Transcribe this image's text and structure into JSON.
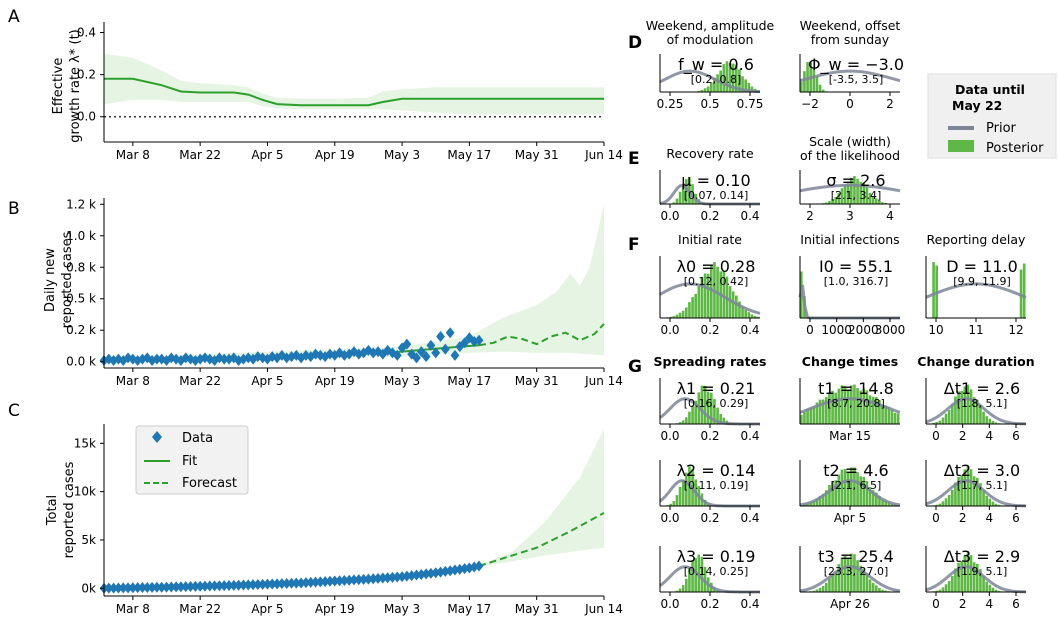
{
  "panel_letters": {
    "A": "A",
    "B": "B",
    "C": "C",
    "D": "D",
    "E": "E",
    "F": "F",
    "G": "G"
  },
  "x_tick_labels": [
    "Mar 8",
    "Mar 22",
    "Apr 5",
    "Apr 19",
    "May 3",
    "May 17",
    "May 31",
    "Jun 14"
  ],
  "colors": {
    "data": "#1f77b4",
    "fit": "#2ca02c",
    "band": "#e6f4e3",
    "posterior": "#5fb845",
    "prior": "#7c8699"
  },
  "chart_data": [
    {
      "type": "line",
      "id": "A",
      "ylabel": "Effective\ngrowth rate λ* (t)",
      "x_dates": [
        "Mar 2",
        "Mar 8",
        "Mar 14",
        "Mar 18",
        "Mar 22",
        "Mar 29",
        "Apr 1",
        "Apr 4",
        "Apr 7",
        "Apr 12",
        "Apr 19",
        "Apr 26",
        "Apr 29",
        "May 3",
        "May 10",
        "May 17",
        "May 31",
        "Jun 14"
      ],
      "series": [
        {
          "role": "fit",
          "values": [
            0.18,
            0.18,
            0.15,
            0.12,
            0.115,
            0.115,
            0.105,
            0.08,
            0.06,
            0.055,
            0.055,
            0.055,
            0.07,
            0.085,
            0.085,
            0.085,
            0.085,
            0.085
          ]
        },
        {
          "role": "band_upper",
          "values": [
            0.3,
            0.28,
            0.22,
            0.17,
            0.16,
            0.15,
            0.14,
            0.11,
            0.09,
            0.085,
            0.085,
            0.09,
            0.12,
            0.13,
            0.14,
            0.14,
            0.14,
            0.14
          ]
        },
        {
          "role": "band_lower",
          "values": [
            0.06,
            0.08,
            0.08,
            0.07,
            0.07,
            0.07,
            0.07,
            0.05,
            0.04,
            0.035,
            0.035,
            0.035,
            0.035,
            0.03,
            0.02,
            0.01,
            0.01,
            0.01
          ]
        }
      ],
      "yticks": [
        "0.0",
        "0.2",
        "0.4"
      ],
      "ylim": [
        -0.12,
        0.45
      ],
      "reference_line": 0
    },
    {
      "type": "line",
      "id": "B",
      "ylabel": "Daily new\nreported cases",
      "yticks": [
        "0.0 k",
        "0.2 k",
        "0.5 k",
        "0.8 k",
        "1.0 k",
        "1.2 k"
      ],
      "ylim": [
        -0.05,
        1.3
      ],
      "data_points": [
        [
          "Mar 2",
          0.01
        ],
        [
          "Mar 3",
          0.02
        ],
        [
          "Mar 4",
          0.01
        ],
        [
          "Mar 5",
          0.02
        ],
        [
          "Mar 6",
          0.01
        ],
        [
          "Mar 7",
          0.03
        ],
        [
          "Mar 8",
          0.02
        ],
        [
          "Mar 9",
          0.01
        ],
        [
          "Mar 10",
          0.02
        ],
        [
          "Mar 11",
          0.03
        ],
        [
          "Mar 12",
          0.01
        ],
        [
          "Mar 13",
          0.02
        ],
        [
          "Mar 14",
          0.02
        ],
        [
          "Mar 15",
          0.01
        ],
        [
          "Mar 16",
          0.03
        ],
        [
          "Mar 17",
          0.02
        ],
        [
          "Mar 18",
          0.01
        ],
        [
          "Mar 19",
          0.03
        ],
        [
          "Mar 20",
          0.02
        ],
        [
          "Mar 21",
          0.01
        ],
        [
          "Mar 22",
          0.02
        ],
        [
          "Mar 23",
          0.03
        ],
        [
          "Mar 24",
          0.02
        ],
        [
          "Mar 25",
          0.01
        ],
        [
          "Mar 26",
          0.03
        ],
        [
          "Mar 27",
          0.02
        ],
        [
          "Mar 28",
          0.02
        ],
        [
          "Mar 29",
          0.03
        ],
        [
          "Mar 30",
          0.01
        ],
        [
          "Mar 31",
          0.02
        ],
        [
          "Apr 1",
          0.03
        ],
        [
          "Apr 2",
          0.02
        ],
        [
          "Apr 3",
          0.04
        ],
        [
          "Apr 4",
          0.03
        ],
        [
          "Apr 5",
          0.02
        ],
        [
          "Apr 6",
          0.04
        ],
        [
          "Apr 7",
          0.03
        ],
        [
          "Apr 8",
          0.05
        ],
        [
          "Apr 9",
          0.03
        ],
        [
          "Apr 10",
          0.04
        ],
        [
          "Apr 11",
          0.05
        ],
        [
          "Apr 12",
          0.03
        ],
        [
          "Apr 13",
          0.05
        ],
        [
          "Apr 14",
          0.04
        ],
        [
          "Apr 15",
          0.06
        ],
        [
          "Apr 16",
          0.05
        ],
        [
          "Apr 17",
          0.04
        ],
        [
          "Apr 18",
          0.06
        ],
        [
          "Apr 19",
          0.05
        ],
        [
          "Apr 20",
          0.07
        ],
        [
          "Apr 21",
          0.05
        ],
        [
          "Apr 22",
          0.06
        ],
        [
          "Apr 23",
          0.08
        ],
        [
          "Apr 24",
          0.06
        ],
        [
          "Apr 25",
          0.07
        ],
        [
          "Apr 26",
          0.09
        ],
        [
          "Apr 27",
          0.07
        ],
        [
          "Apr 28",
          0.08
        ],
        [
          "Apr 29",
          0.06
        ],
        [
          "Apr 30",
          0.09
        ],
        [
          "May 1",
          0.07
        ],
        [
          "May 2",
          0.05
        ],
        [
          "May 3",
          0.11
        ],
        [
          "May 4",
          0.14
        ],
        [
          "May 5",
          0.06
        ],
        [
          "May 6",
          0.03
        ],
        [
          "May 7",
          0.08
        ],
        [
          "May 8",
          0.04
        ],
        [
          "May 9",
          0.13
        ],
        [
          "May 10",
          0.07
        ],
        [
          "May 11",
          0.2
        ],
        [
          "May 12",
          0.1
        ],
        [
          "May 13",
          0.23
        ],
        [
          "May 14",
          0.05
        ],
        [
          "May 15",
          0.12
        ],
        [
          "May 16",
          0.15
        ],
        [
          "May 17",
          0.19
        ],
        [
          "May 18",
          0.16
        ],
        [
          "May 19",
          0.17
        ]
      ],
      "fit": [
        [
          "Mar 2",
          0.01
        ],
        [
          "Mar 22",
          0.02
        ],
        [
          "Apr 5",
          0.03
        ],
        [
          "Apr 19",
          0.05
        ],
        [
          "May 3",
          0.08
        ],
        [
          "May 12",
          0.11
        ],
        [
          "May 19",
          0.13
        ]
      ],
      "forecast": [
        [
          "May 19",
          0.13
        ],
        [
          "May 22",
          0.15
        ],
        [
          "May 25",
          0.2
        ],
        [
          "May 28",
          0.18
        ],
        [
          "May 31",
          0.14
        ],
        [
          "Jun 3",
          0.2
        ],
        [
          "Jun 6",
          0.23
        ],
        [
          "Jun 9",
          0.17
        ],
        [
          "Jun 12",
          0.22
        ],
        [
          "Jun 14",
          0.3
        ]
      ],
      "band_upper": [
        [
          "Mar 2",
          0.03
        ],
        [
          "May 3",
          0.12
        ],
        [
          "May 17",
          0.2
        ],
        [
          "May 24",
          0.35
        ],
        [
          "May 31",
          0.45
        ],
        [
          "Jun 4",
          0.55
        ],
        [
          "Jun 7",
          0.7
        ],
        [
          "Jun 9",
          0.6
        ],
        [
          "Jun 11",
          0.75
        ],
        [
          "Jun 14",
          1.25
        ]
      ],
      "band_lower": [
        [
          "Mar 2",
          0.0
        ],
        [
          "May 3",
          0.04
        ],
        [
          "May 17",
          0.07
        ],
        [
          "May 24",
          0.08
        ],
        [
          "May 31",
          0.07
        ],
        [
          "Jun 7",
          0.07
        ],
        [
          "Jun 14",
          0.05
        ]
      ]
    },
    {
      "type": "line",
      "id": "C",
      "ylabel": "Total\nreported cases",
      "yticks": [
        "0k",
        "5k",
        "10k",
        "15k"
      ],
      "ylim": [
        -0.8,
        17
      ],
      "data_cumulative": [
        [
          "Mar 2",
          0.0
        ],
        [
          "Mar 15",
          0.12
        ],
        [
          "Mar 29",
          0.3
        ],
        [
          "Apr 12",
          0.55
        ],
        [
          "Apr 26",
          0.95
        ],
        [
          "May 3",
          1.2
        ],
        [
          "May 10",
          1.6
        ],
        [
          "May 17",
          2.1
        ],
        [
          "May 19",
          2.3
        ]
      ],
      "fit": [
        [
          "Mar 2",
          0.0
        ],
        [
          "Mar 29",
          0.3
        ],
        [
          "Apr 26",
          0.95
        ],
        [
          "May 19",
          2.3
        ]
      ],
      "forecast": [
        [
          "May 19",
          2.3
        ],
        [
          "May 31",
          4.2
        ],
        [
          "Jun 7",
          5.9
        ],
        [
          "Jun 14",
          7.8
        ]
      ],
      "band_upper": [
        [
          "May 19",
          2.4
        ],
        [
          "May 26",
          3.8
        ],
        [
          "Jun 2",
          7.0
        ],
        [
          "Jun 9",
          11.5
        ],
        [
          "Jun 14",
          16.5
        ]
      ],
      "band_lower": [
        [
          "May 19",
          2.2
        ],
        [
          "May 26",
          2.8
        ],
        [
          "Jun 2",
          3.4
        ],
        [
          "Jun 9",
          3.9
        ],
        [
          "Jun 14",
          4.2
        ]
      ],
      "legend": {
        "data": "Data",
        "fit": "Fit",
        "forecast": "Forecast",
        "placement": "top-left"
      }
    }
  ],
  "posterior_legend": {
    "title_line1": "Data until",
    "title_line2": "May 22",
    "prior": "Prior",
    "posterior": "Posterior"
  },
  "dist_panels": [
    {
      "id": "d1",
      "title1": "Weekend, amplitude",
      "title2": "of modulation",
      "stat": "f_w = 0.6",
      "ci": "[0.2, 0.8]",
      "xticks": [
        "0.25",
        "0.5",
        "0.75"
      ]
    },
    {
      "id": "d2",
      "title1": "Weekend, offset",
      "title2": "from sunday",
      "stat": "Φ_w = −3.0",
      "ci": "[-3.5, 3.5]",
      "xticks": [
        "−2",
        "0",
        "2"
      ]
    },
    {
      "id": "e1",
      "title1": "Recovery rate",
      "title2": "",
      "stat": "μ = 0.10",
      "ci": "[0.07, 0.14]",
      "xticks": [
        "0.0",
        "0.2",
        "0.4"
      ]
    },
    {
      "id": "e2",
      "title1": "Scale (width)",
      "title2": "of the likelihood",
      "stat": "σ = 2.6",
      "ci": "[2.1, 3.4]",
      "xticks": [
        "2",
        "3",
        "4"
      ]
    },
    {
      "id": "f1",
      "title1": "Initial rate",
      "title2": "",
      "stat": "λ0 = 0.28",
      "ci": "[0.12, 0.42]",
      "xticks": [
        "0.0",
        "0.2",
        "0.4"
      ]
    },
    {
      "id": "f2",
      "title1": "Initial infections",
      "title2": "",
      "stat": "I0 = 55.1",
      "ci": "[1.0, 316.7]",
      "xticks": [
        "0",
        "1000",
        "2000",
        "3000"
      ]
    },
    {
      "id": "f3",
      "title1": "Reporting delay",
      "title2": "",
      "stat": "D = 11.0",
      "ci": "[9.9, 11.9]",
      "xticks": [
        "10",
        "11",
        "12"
      ]
    },
    {
      "id": "g1",
      "title1": "Spreading rates",
      "title2": "",
      "stat": "λ1 = 0.21",
      "ci": "[0.16, 0.29]",
      "xticks": [
        "0.0",
        "0.2",
        "0.4"
      ]
    },
    {
      "id": "g2",
      "title1": "Change times",
      "title2": "",
      "stat": "t1 = 14.8",
      "ci": "[8.7, 20.8]",
      "xticks": [
        "Mar 15"
      ]
    },
    {
      "id": "g3",
      "title1": "Change duration",
      "title2": "",
      "stat": "Δt1 = 2.6",
      "ci": "[1.8, 5.1]",
      "xticks": [
        "0",
        "2",
        "4",
        "6"
      ]
    },
    {
      "id": "g4",
      "title1": "",
      "title2": "",
      "stat": "λ2 = 0.14",
      "ci": "[0.11, 0.19]",
      "xticks": [
        "0.0",
        "0.2",
        "0.4"
      ]
    },
    {
      "id": "g5",
      "title1": "",
      "title2": "",
      "stat": "t2 = 4.6",
      "ci": "[2.1, 6.5]",
      "xticks": [
        "Apr 5"
      ]
    },
    {
      "id": "g6",
      "title1": "",
      "title2": "",
      "stat": "Δt2 = 3.0",
      "ci": "[1.7, 5.1]",
      "xticks": [
        "0",
        "2",
        "4",
        "6"
      ]
    },
    {
      "id": "g7",
      "title1": "",
      "title2": "",
      "stat": "λ3 = 0.19",
      "ci": "[0.14, 0.25]",
      "xticks": [
        "0.0",
        "0.2",
        "0.4"
      ]
    },
    {
      "id": "g8",
      "title1": "",
      "title2": "",
      "stat": "t3 = 25.4",
      "ci": "[23.3, 27.0]",
      "xticks": [
        "Apr 26"
      ]
    },
    {
      "id": "g9",
      "title1": "",
      "title2": "",
      "stat": "Δt3 = 2.9",
      "ci": "[1.9, 5.1]",
      "xticks": [
        "0",
        "2",
        "4",
        "6"
      ]
    }
  ]
}
